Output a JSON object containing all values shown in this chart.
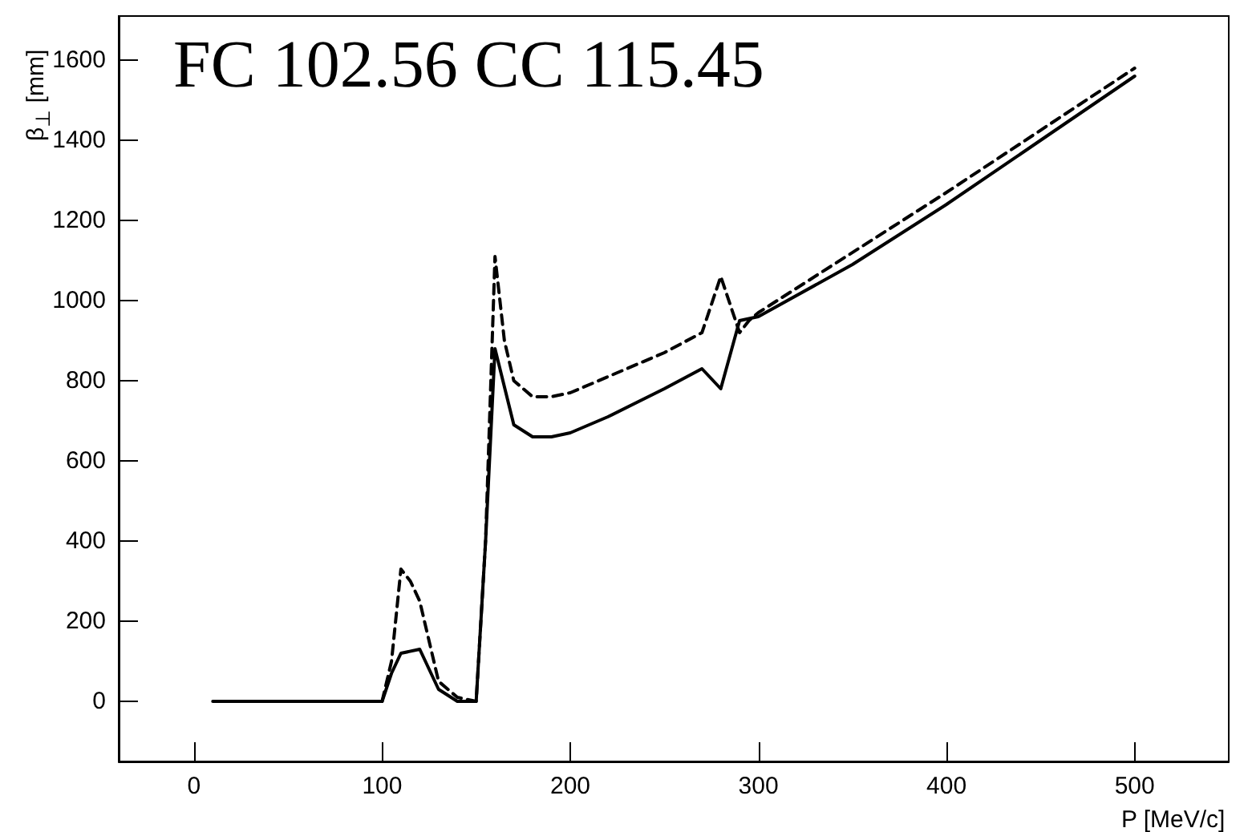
{
  "chart_data": {
    "type": "line",
    "xlabel": "P [MeV/c]",
    "ylabel": "β$_{⊥}$ [mm]",
    "annotations": [
      "FC 102.56 CC 115.45"
    ],
    "xlim": [
      -40,
      550
    ],
    "xticks": [
      0,
      100,
      200,
      300,
      400,
      500
    ],
    "ylim": [
      -150,
      1710
    ],
    "yticks": [
      0,
      200,
      400,
      600,
      800,
      1000,
      1200,
      1400,
      1600
    ],
    "grid": false,
    "series": [
      {
        "color": "#000000",
        "line_style": "solid",
        "x": [
          10,
          100,
          105,
          110,
          120,
          130,
          140,
          150,
          155,
          160,
          170,
          180,
          190,
          200,
          220,
          250,
          270,
          280,
          290,
          300,
          350,
          400,
          450,
          500
        ],
        "values": [
          0,
          0,
          70,
          120,
          130,
          30,
          0,
          0,
          400,
          880,
          690,
          660,
          660,
          670,
          710,
          780,
          830,
          780,
          950,
          960,
          1090,
          1240,
          1400,
          1560
        ]
      },
      {
        "color": "#000000",
        "line_style": "dashed",
        "x": [
          100,
          105,
          110,
          115,
          120,
          125,
          130,
          140,
          150,
          155,
          160,
          165,
          170,
          180,
          190,
          200,
          250,
          270,
          280,
          290,
          295,
          300,
          400,
          500
        ],
        "values": [
          0,
          100,
          330,
          300,
          250,
          150,
          50,
          10,
          0,
          400,
          1110,
          900,
          800,
          760,
          760,
          770,
          870,
          920,
          1060,
          920,
          950,
          970,
          1270,
          1580
        ]
      }
    ]
  }
}
